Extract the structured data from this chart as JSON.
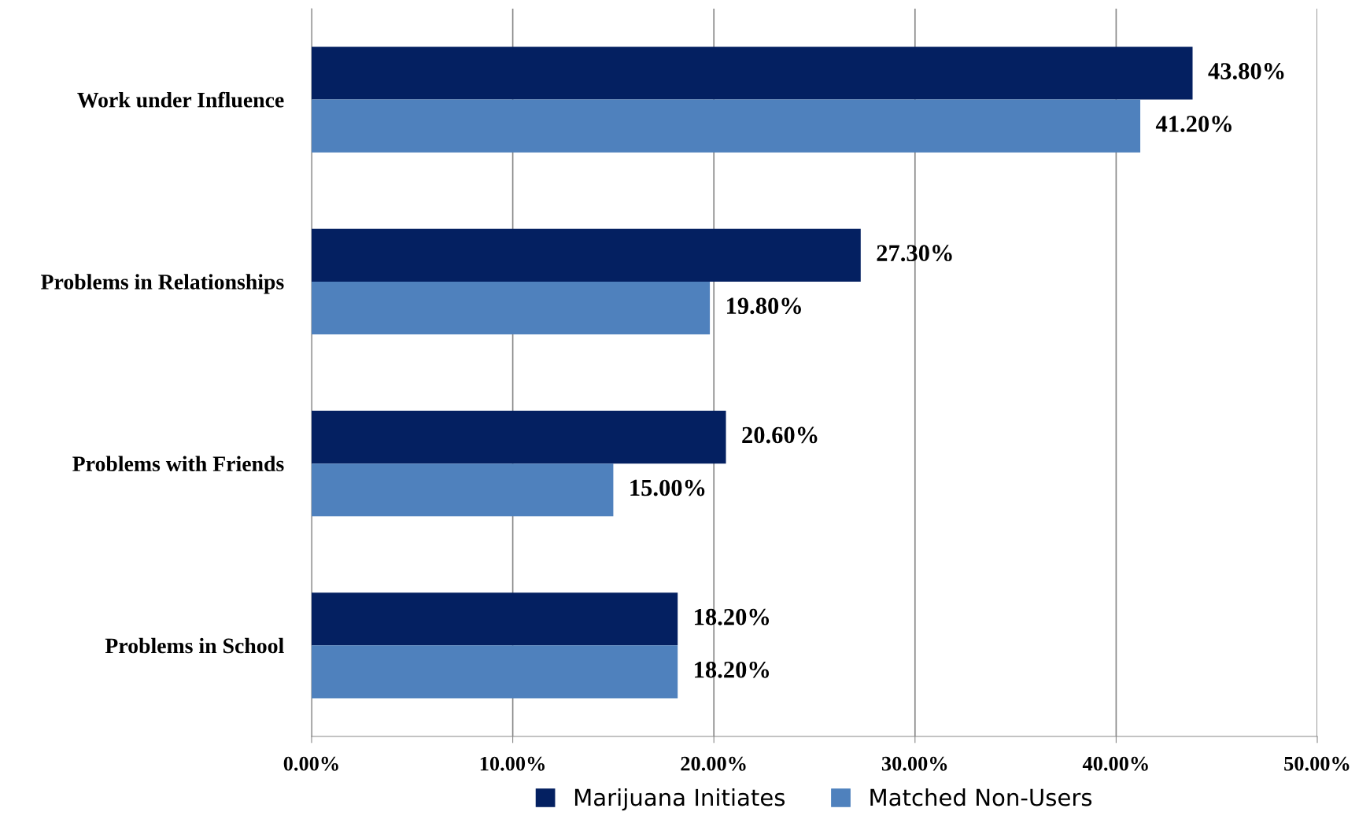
{
  "chart_data": {
    "type": "bar",
    "orientation": "horizontal",
    "categories": [
      "Work under Influence",
      "Problems in Relationships",
      "Problems with Friends",
      "Problems in School"
    ],
    "series": [
      {
        "name": "Marijuana Initiates",
        "color": "#042061",
        "values": [
          43.8,
          27.3,
          20.6,
          18.2
        ],
        "value_labels": [
          "43.80%",
          "27.30%",
          "20.60%",
          "18.20%"
        ]
      },
      {
        "name": "Matched Non-Users",
        "color": "#4f81bd",
        "values": [
          41.2,
          19.8,
          15.0,
          18.2
        ],
        "value_labels": [
          "41.20%",
          "19.80%",
          "15.00%",
          "18.20%"
        ]
      }
    ],
    "xlim": [
      0,
      50
    ],
    "xticks": [
      {
        "value": 0,
        "label": "0.00%"
      },
      {
        "value": 10,
        "label": "10.00%"
      },
      {
        "value": 20,
        "label": "20.00%"
      },
      {
        "value": 30,
        "label": "30.00%"
      },
      {
        "value": 40,
        "label": "40.00%"
      },
      {
        "value": 50,
        "label": "50.00%"
      }
    ],
    "grid": "x",
    "legend": "bottom"
  }
}
